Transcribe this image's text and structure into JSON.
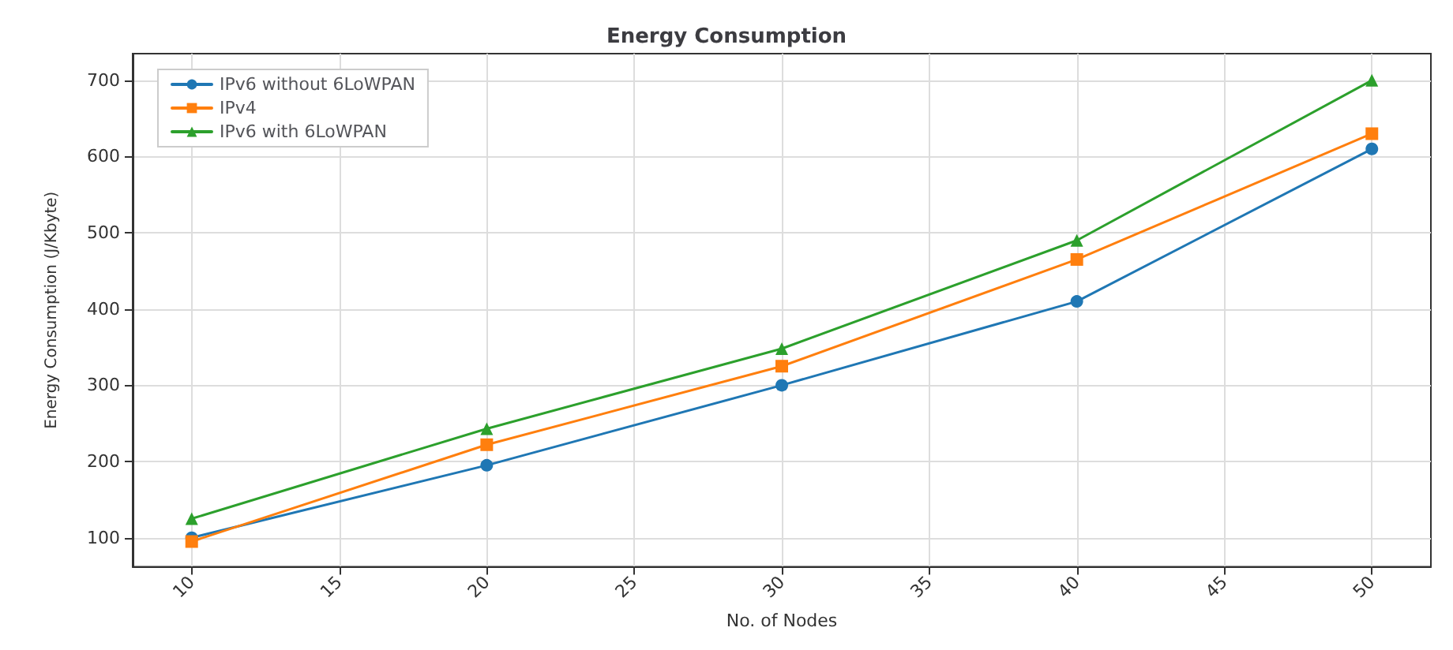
{
  "chart_data": {
    "type": "line",
    "title": "Energy Consumption",
    "xlabel": "No. of Nodes",
    "ylabel": "Energy Consumption (J/Kbyte)",
    "x": [
      10,
      20,
      30,
      40,
      50
    ],
    "series": [
      {
        "name": "IPv6 without 6LoWPAN",
        "color": "#1f77b4",
        "marker": "circle",
        "values": [
          100,
          195,
          300,
          410,
          610
        ]
      },
      {
        "name": "IPv4",
        "color": "#ff7f0e",
        "marker": "square",
        "values": [
          95,
          222,
          325,
          465,
          630
        ]
      },
      {
        "name": "IPv6 with 6LoWPAN",
        "color": "#2ca02c",
        "marker": "triangle",
        "values": [
          125,
          243,
          348,
          490,
          700
        ]
      }
    ],
    "xlim": [
      8,
      52
    ],
    "xticks": [
      10,
      15,
      20,
      25,
      30,
      35,
      40,
      45,
      50
    ],
    "ylim": [
      62,
      735
    ],
    "yticks": [
      100,
      200,
      300,
      400,
      500,
      600,
      700
    ],
    "grid": true,
    "legend": "top left",
    "line_style": "solid"
  }
}
